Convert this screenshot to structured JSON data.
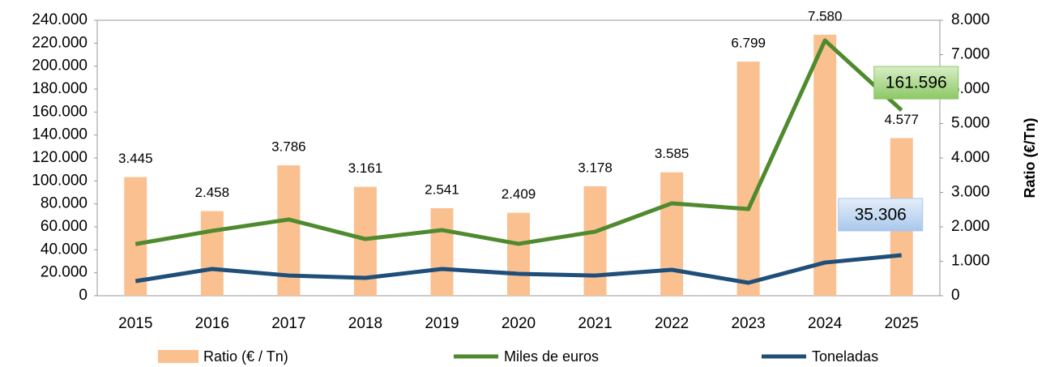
{
  "chart_data": {
    "type": "bar_line",
    "categories": [
      "2015",
      "2016",
      "2017",
      "2018",
      "2019",
      "2020",
      "2021",
      "2022",
      "2023",
      "2024",
      "2025"
    ],
    "series": [
      {
        "name": "Ratio (€ / Tn)",
        "type": "bar",
        "axis": "y2",
        "color": "#fac090",
        "values": [
          3445,
          2458,
          3786,
          3161,
          2541,
          2409,
          3178,
          3585,
          6799,
          7580,
          4577
        ],
        "value_labels": [
          "3.445",
          "2.458",
          "3.786",
          "3.161",
          "2.541",
          "2.409",
          "3.178",
          "3.585",
          "6.799",
          "7.580",
          "4.577"
        ]
      },
      {
        "name": "Miles de euros",
        "type": "line",
        "color": "#4f8a2e",
        "values": [
          45000,
          56500,
          66400,
          49400,
          57200,
          45200,
          55800,
          80500,
          75500,
          222400,
          161596
        ],
        "value_labels": [
          null,
          null,
          null,
          null,
          null,
          null,
          null,
          null,
          null,
          null,
          "161.596"
        ]
      },
      {
        "name": "Toneladas",
        "type": "line",
        "color": "#1f4e79",
        "values": [
          12700,
          23300,
          17600,
          15500,
          23300,
          19100,
          17600,
          22600,
          11300,
          28900,
          35306
        ],
        "value_labels": [
          null,
          null,
          null,
          null,
          null,
          null,
          null,
          null,
          null,
          null,
          "35.306"
        ]
      }
    ],
    "ylim": [
      0,
      240000
    ],
    "yticks": [
      0,
      {
        "value": 20000,
        "label": "20.000"
      },
      {
        "value": 40000,
        "label": "40.000"
      },
      {
        "value": 60000,
        "label": "60.000"
      },
      {
        "value": 80000,
        "label": "80.000"
      },
      {
        "value": 100000,
        "label": "100.000"
      },
      {
        "value": 120000,
        "label": "120.000"
      },
      {
        "value": 140000,
        "label": "140.000"
      },
      {
        "value": 160000,
        "label": "160.000"
      },
      {
        "value": 180000,
        "label": "180.000"
      },
      {
        "value": 200000,
        "label": "200.000"
      },
      {
        "value": 220000,
        "label": "220.000"
      },
      {
        "value": 240000,
        "label": "240.000"
      }
    ],
    "y2lim": [
      0,
      8000
    ],
    "y2ticks": [
      0,
      {
        "value": 1000,
        "label": "1.000"
      },
      {
        "value": 2000,
        "label": "2.000"
      },
      {
        "value": 3000,
        "label": "3.000"
      },
      {
        "value": 4000,
        "label": "4.000"
      },
      {
        "value": 5000,
        "label": "5.000"
      },
      {
        "value": 6000,
        "label": "6.000"
      },
      {
        "value": 7000,
        "label": "7.000"
      },
      {
        "value": 8000,
        "label": "8.000"
      }
    ],
    "y2label": "Ratio (€/Tn)",
    "legend": "bottom",
    "grid": false
  }
}
